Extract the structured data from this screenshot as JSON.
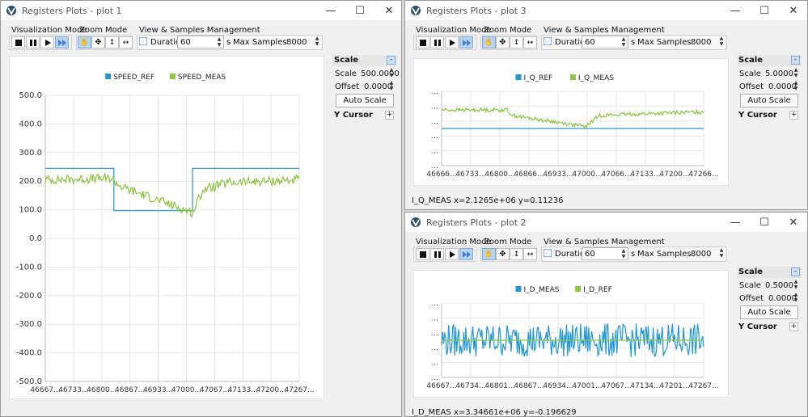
{
  "app_name": "Registers Plots",
  "windows": [
    {
      "title": "Registers Plots - plot 1",
      "toolbar": {
        "visualization_mode": "Visualization Mode",
        "zoom_mode": "Zoom Mode",
        "view_samples": "View & Samples Management",
        "duration_label": "Duration",
        "duration_value": "60",
        "duration_unit": "s",
        "max_samples_label": "Max Samples",
        "max_samples_value": "8000"
      },
      "side": {
        "scale_header": "Scale",
        "scale_label": "Scale",
        "scale_value": "500.0000",
        "offset_label": "Offset",
        "offset_value": "0.0000",
        "auto_scale": "Auto Scale",
        "y_cursor": "Y Cursor"
      },
      "status": ""
    },
    {
      "title": "Registers Plots - plot 3",
      "toolbar": {
        "visualization_mode": "Visualization Mode",
        "zoom_mode": "Zoom Mode",
        "view_samples": "View & Samples Management",
        "duration_label": "Duration",
        "duration_value": "60",
        "duration_unit": "s",
        "max_samples_label": "Max Samples",
        "max_samples_value": "8000"
      },
      "side": {
        "scale_header": "Scale",
        "scale_label": "Scale",
        "scale_value": "5.0000",
        "offset_label": "Offset",
        "offset_value": "0.0000",
        "auto_scale": "Auto Scale",
        "y_cursor": "Y Cursor"
      },
      "status": "I_Q_MEAS x=2.1265e+06 y=0.11236"
    },
    {
      "title": "Registers Plots - plot 2",
      "toolbar": {
        "visualization_mode": "Visualization Mode",
        "zoom_mode": "Zoom Mode",
        "view_samples": "View & Samples Management",
        "duration_label": "Duration",
        "duration_value": "60",
        "duration_unit": "s",
        "max_samples_label": "Max Samples",
        "max_samples_value": "8000"
      },
      "side": {
        "scale_header": "Scale",
        "scale_label": "Scale",
        "scale_value": "0.5000",
        "offset_label": "Offset",
        "offset_value": "0.0000",
        "auto_scale": "Auto Scale",
        "y_cursor": "Y Cursor"
      },
      "status": "I_D_MEAS x=3.34661e+06 y=-0.196629"
    }
  ],
  "chart_data": [
    {
      "type": "line",
      "legend_placement": "top-center",
      "grid": true,
      "x_tick_labels": [
        "46667...",
        "46733...",
        "46800...",
        "46867...",
        "46933...",
        "47000...",
        "47067...",
        "47133...",
        "47200...",
        "47267..."
      ],
      "y_tick_labels": [
        "500.0",
        "400.0",
        "300.0",
        "200.0",
        "100.0",
        "0.0",
        "-100.0",
        "-200.0",
        "-300.0",
        "-400.0",
        "-500.0"
      ],
      "ylim": [
        -500,
        500
      ],
      "series": [
        {
          "name": "SPEED_REF",
          "color": "#1f97d4",
          "shape": "step",
          "x": [
            0,
            0.27,
            0.27,
            0.58,
            0.58,
            1.0
          ],
          "y": [
            245,
            245,
            97,
            97,
            245,
            245
          ]
        },
        {
          "name": "SPEED_MEAS",
          "color": "#8cc63e",
          "shape": "noisy",
          "x": [
            0,
            0.26,
            0.3,
            0.58,
            0.62,
            0.72,
            1.0
          ],
          "y": [
            205,
            210,
            180,
            90,
            170,
            195,
            205
          ],
          "noise": 16
        }
      ]
    },
    {
      "type": "line",
      "legend_placement": "top-center",
      "grid": true,
      "x_tick_labels": [
        "46666...",
        "46733...",
        "46800...",
        "46866...",
        "46933...",
        "47000...",
        "47066...",
        "47133...",
        "47200...",
        "47266..."
      ],
      "y_tick_labels": [
        "...",
        "...",
        "...",
        "...",
        "...",
        "..."
      ],
      "ylim": [
        -1,
        1
      ],
      "series": [
        {
          "name": "I_Q_REF",
          "color": "#1f97d4",
          "shape": "flat",
          "x": [
            0,
            1
          ],
          "y": [
            0,
            0
          ]
        },
        {
          "name": "I_Q_MEAS",
          "color": "#8cc63e",
          "shape": "noisy",
          "x": [
            0,
            0.25,
            0.27,
            0.55,
            0.6,
            1.0
          ],
          "y": [
            0.5,
            0.5,
            0.35,
            0.05,
            0.35,
            0.45
          ],
          "noise": 0.05
        }
      ]
    },
    {
      "type": "line",
      "legend_placement": "top-center",
      "grid": true,
      "x_tick_labels": [
        "46667...",
        "46734...",
        "46801...",
        "46867...",
        "46934...",
        "47001...",
        "47067...",
        "47134...",
        "47201...",
        "47267..."
      ],
      "y_tick_labels": [
        "...",
        "...",
        "...",
        "...",
        "...",
        "..."
      ],
      "ylim": [
        -1,
        1
      ],
      "series": [
        {
          "name": "I_D_MEAS",
          "color": "#1f97d4",
          "shape": "noisy",
          "x": [
            0,
            1
          ],
          "y": [
            0,
            0
          ],
          "noise": 0.45
        },
        {
          "name": "I_D_REF",
          "color": "#8cc63e",
          "shape": "flat",
          "x": [
            0,
            1
          ],
          "y": [
            0,
            0
          ]
        }
      ]
    }
  ]
}
